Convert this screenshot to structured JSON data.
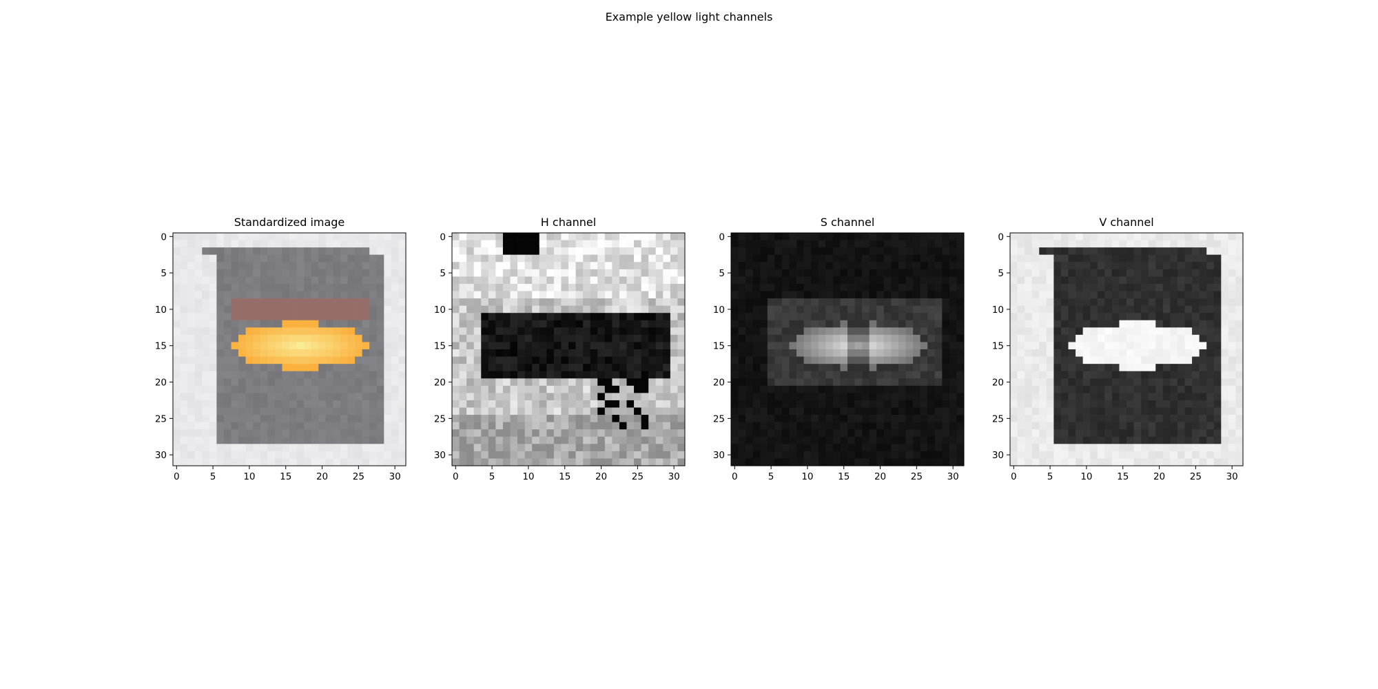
{
  "figure": {
    "suptitle": "Example yellow light channels"
  },
  "chart_data": [
    {
      "type": "heatmap",
      "title": "Standardized image",
      "xlabel": "",
      "ylabel": "",
      "xlim": [
        -0.5,
        31.5
      ],
      "ylim": [
        31.5,
        -0.5
      ],
      "xticks": [
        0,
        5,
        10,
        15,
        20,
        25,
        30
      ],
      "yticks": [
        0,
        5,
        10,
        15,
        20,
        25,
        30
      ],
      "colormap": "rgb",
      "grid": false
    },
    {
      "type": "heatmap",
      "title": "H channel",
      "xlabel": "",
      "ylabel": "",
      "xlim": [
        -0.5,
        31.5
      ],
      "ylim": [
        31.5,
        -0.5
      ],
      "xticks": [
        0,
        5,
        10,
        15,
        20,
        25,
        30
      ],
      "yticks": [
        0,
        5,
        10,
        15,
        20,
        25,
        30
      ],
      "colormap": "gray",
      "grid": false
    },
    {
      "type": "heatmap",
      "title": "S channel",
      "xlabel": "",
      "ylabel": "",
      "xlim": [
        -0.5,
        31.5
      ],
      "ylim": [
        31.5,
        -0.5
      ],
      "xticks": [
        0,
        5,
        10,
        15,
        20,
        25,
        30
      ],
      "yticks": [
        0,
        5,
        10,
        15,
        20,
        25,
        30
      ],
      "colormap": "gray",
      "grid": false
    },
    {
      "type": "heatmap",
      "title": "V channel",
      "xlabel": "",
      "ylabel": "",
      "xlim": [
        -0.5,
        31.5
      ],
      "ylim": [
        31.5,
        -0.5
      ],
      "xticks": [
        0,
        5,
        10,
        15,
        20,
        25,
        30
      ],
      "yticks": [
        0,
        5,
        10,
        15,
        20,
        25,
        30
      ],
      "colormap": "gray",
      "grid": false
    }
  ]
}
